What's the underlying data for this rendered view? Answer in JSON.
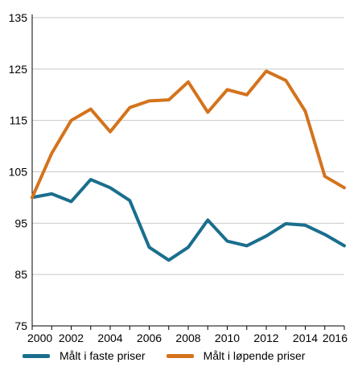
{
  "chart_data": {
    "type": "line",
    "x": [
      2000,
      2001,
      2002,
      2003,
      2004,
      2005,
      2006,
      2007,
      2008,
      2009,
      2010,
      2011,
      2012,
      2013,
      2014,
      2015,
      2016
    ],
    "xticks": [
      "2000",
      "2002",
      "2004",
      "2006",
      "2008",
      "2010",
      "2012",
      "2014",
      "2016"
    ],
    "yticks": [
      "75",
      "85",
      "95",
      "105",
      "115",
      "125",
      "135"
    ],
    "ylim": [
      75,
      135
    ],
    "xlim": [
      2000,
      2016
    ],
    "grid": "horizontal",
    "legend_position": "bottom",
    "series": [
      {
        "name": "Målt i faste priser",
        "color": "#1a6e8e",
        "values": [
          100.0,
          100.7,
          99.2,
          103.5,
          101.9,
          99.4,
          90.3,
          87.8,
          90.3,
          95.6,
          91.5,
          90.6,
          92.5,
          94.9,
          94.6,
          92.8,
          90.6
        ]
      },
      {
        "name": "Målt i løpende priser",
        "color": "#d4731c",
        "values": [
          100.0,
          108.6,
          115.0,
          117.2,
          112.8,
          117.5,
          118.8,
          119.0,
          122.5,
          116.6,
          121.0,
          120.0,
          124.6,
          122.8,
          116.8,
          104.1,
          101.9
        ]
      }
    ]
  }
}
